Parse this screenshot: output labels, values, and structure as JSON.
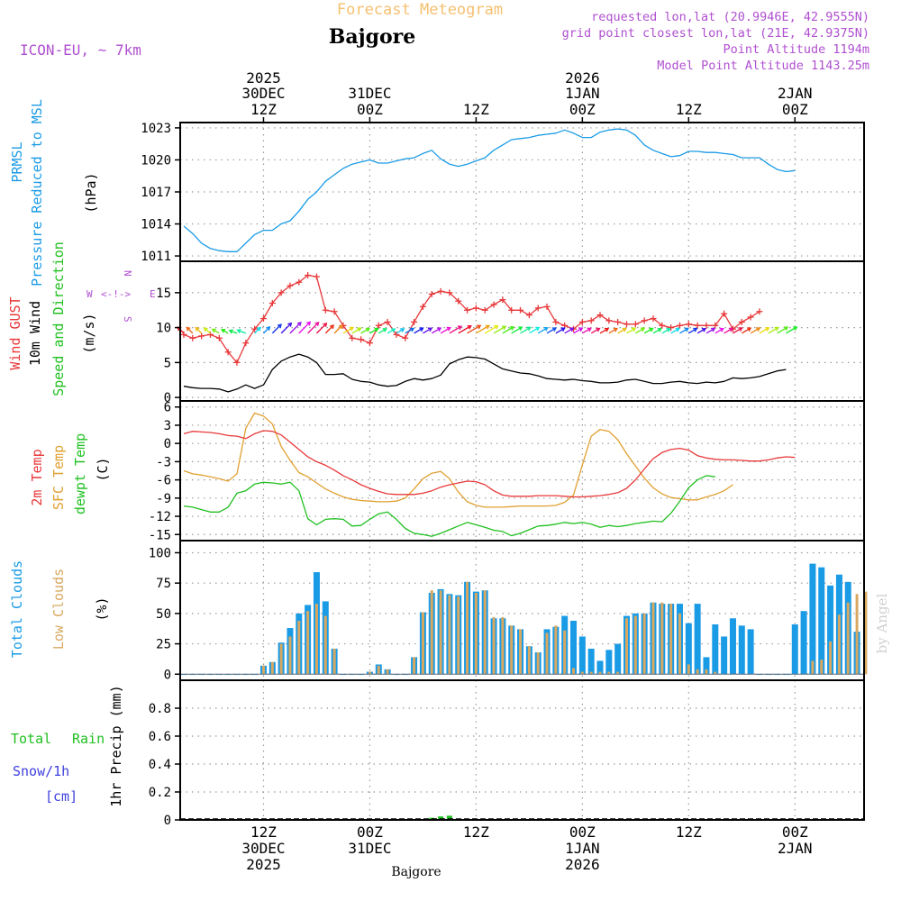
{
  "header": {
    "product": "Forecast Meteogram",
    "location": "Bajgore",
    "model": "ICON-EU, ~ 7km",
    "requested": "requested lon,lat (20.9946E, 42.9555N)",
    "gridpoint": "grid point closest lon,lat (21E, 42.9375N)",
    "altitude": "Point Altitude 1194m",
    "model_altitude": "Model Point Altitude 1143.25m",
    "credit": "by Angel",
    "footer": "Bajgore"
  },
  "colors": {
    "pressure": "#1a9be6",
    "gust": "#e8383a",
    "wind": "#000000",
    "temp": "#e8383a",
    "sfc": "#e0a030",
    "dew": "#20c020",
    "total_clouds": "#1a9be6",
    "low_clouds": "#d8a860",
    "rain": "#20c020",
    "snow": "#4040e0",
    "header_orange": "#f5c070",
    "header_purple": "#b050d0"
  },
  "time_axis": {
    "top_labels": [
      {
        "slot": 9,
        "l1": "2025",
        "l2": "30DEC",
        "l3": "12Z"
      },
      {
        "slot": 21,
        "l1": "",
        "l2": "31DEC",
        "l3": "00Z"
      },
      {
        "slot": 33,
        "l1": "",
        "l2": "",
        "l3": "12Z"
      },
      {
        "slot": 45,
        "l1": "2026",
        "l2": "1JAN",
        "l3": "00Z"
      },
      {
        "slot": 57,
        "l1": "",
        "l2": "",
        "l3": "12Z"
      },
      {
        "slot": 69,
        "l1": "",
        "l2": "2JAN",
        "l3": "00Z"
      }
    ],
    "bottom_labels": [
      {
        "slot": 9,
        "l1": "12Z",
        "l2": "30DEC",
        "l3": "2025"
      },
      {
        "slot": 21,
        "l1": "00Z",
        "l2": "31DEC",
        "l3": ""
      },
      {
        "slot": 33,
        "l1": "12Z",
        "l2": "",
        "l3": ""
      },
      {
        "slot": 45,
        "l1": "00Z",
        "l2": "1JAN",
        "l3": "2026"
      },
      {
        "slot": 57,
        "l1": "12Z",
        "l2": "",
        "l3": ""
      },
      {
        "slot": 69,
        "l1": "00Z",
        "l2": "2JAN",
        "l3": ""
      }
    ]
  },
  "chart_data": [
    {
      "type": "line",
      "id": "pressure",
      "title": "PRMSL Pressure Reduced to MSL",
      "ylabel": "(hPa)",
      "label1": "PRMSL",
      "label2": "Pressure Reduced to MSL",
      "ylim": [
        1010.5,
        1023.5
      ],
      "yticks": [
        1011,
        1014,
        1017,
        1020,
        1023
      ],
      "series": [
        {
          "name": "PRMSL",
          "values": [
            1013.8,
            1013.1,
            1012.2,
            1011.7,
            1011.5,
            1011.4,
            1011.4,
            1012.2,
            1013.0,
            1013.4,
            1013.4,
            1014.0,
            1014.3,
            1015.2,
            1016.3,
            1017.0,
            1018.0,
            1018.6,
            1019.2,
            1019.6,
            1019.8,
            1020.0,
            1019.7,
            1019.7,
            1019.9,
            1020.1,
            1020.2,
            1020.6,
            1020.9,
            1020.1,
            1019.6,
            1019.4,
            1019.6,
            1019.9,
            1020.2,
            1020.9,
            1021.4,
            1021.9,
            1022.0,
            1022.1,
            1022.3,
            1022.4,
            1022.5,
            1022.8,
            1022.5,
            1022.1,
            1022.1,
            1022.6,
            1022.8,
            1022.9,
            1022.8,
            1022.3,
            1021.4,
            1020.9,
            1020.6,
            1020.3,
            1020.4,
            1020.8,
            1020.8,
            1020.7,
            1020.7,
            1020.6,
            1020.5,
            1020.2,
            1020.2,
            1020.2,
            1019.6,
            1019.1,
            1018.9,
            1019.0
          ]
        }
      ]
    },
    {
      "type": "line",
      "id": "wind",
      "title": "Wind GUST / 10m Wind Speed and Direction",
      "ylabel": "(m/s)",
      "label_gust": "Wind GUST",
      "label_wind": "10m Wind",
      "label_dir": "Speed and Direction",
      "compass": {
        "w": "W",
        "e": "E",
        "arrow": "<-!->",
        "n": "N",
        "s": "S"
      },
      "ylim": [
        -0.5,
        19.5
      ],
      "yticks": [
        0,
        5,
        10,
        15
      ],
      "series": [
        {
          "name": "Wind GUST",
          "values": [
            9.0,
            8.5,
            8.8,
            9.0,
            8.5,
            6.5,
            5.0,
            7.8,
            9.8,
            11.3,
            13.5,
            15.0,
            16.0,
            16.5,
            17.5,
            17.3,
            12.5,
            12.3,
            10.3,
            8.5,
            8.3,
            7.8,
            10.3,
            10.8,
            9.0,
            8.5,
            10.8,
            13.0,
            14.8,
            15.2,
            15.0,
            13.8,
            12.5,
            12.8,
            12.5,
            13.3,
            14.0,
            12.5,
            12.5,
            11.8,
            12.8,
            13.0,
            10.8,
            10.3,
            9.8,
            10.8,
            11.0,
            11.8,
            11.0,
            10.8,
            10.5,
            10.5,
            11.0,
            11.3,
            10.3,
            10.0,
            10.3,
            10.5,
            10.3,
            10.3,
            10.3,
            12.0,
            9.8,
            10.8,
            11.5,
            12.3
          ]
        },
        {
          "name": "10m Wind",
          "values": [
            1.6,
            1.4,
            1.3,
            1.3,
            1.2,
            0.8,
            1.2,
            1.8,
            1.3,
            1.8,
            4.0,
            5.2,
            5.8,
            6.2,
            5.8,
            5.0,
            3.3,
            3.3,
            3.4,
            2.6,
            2.3,
            2.2,
            1.8,
            1.6,
            1.7,
            2.3,
            2.7,
            2.5,
            2.7,
            3.2,
            4.8,
            5.4,
            5.8,
            5.7,
            5.5,
            4.8,
            4.1,
            3.8,
            3.5,
            3.4,
            3.1,
            2.7,
            2.6,
            2.5,
            2.6,
            2.4,
            2.3,
            2.1,
            2.1,
            2.2,
            2.5,
            2.6,
            2.3,
            2.0,
            2.0,
            2.2,
            2.3,
            2.1,
            2.0,
            2.2,
            2.1,
            2.3,
            2.8,
            2.7,
            2.8,
            3.0,
            3.4,
            3.8,
            4.0
          ]
        }
      ],
      "wind_direction_deg": [
        315,
        315,
        315,
        310,
        300,
        300,
        290,
        290,
        45,
        45,
        45,
        45,
        45,
        45,
        45,
        45,
        45,
        45,
        60,
        60,
        60,
        60,
        60,
        60,
        60,
        60,
        60,
        60,
        60,
        60,
        60,
        60,
        60,
        60,
        60,
        60,
        60,
        60,
        60,
        60,
        60,
        60,
        60,
        60,
        60,
        60,
        60,
        60,
        60,
        60,
        60,
        60,
        60,
        60,
        60,
        60,
        60,
        60,
        60,
        60,
        60,
        60,
        60,
        60,
        60,
        60,
        60,
        60,
        60,
        60
      ]
    },
    {
      "type": "line",
      "id": "temperature",
      "title": "2m Temp / SFC Temp / dewpt Temp",
      "ylabel": "(C)",
      "label_t2m": "2m Temp",
      "label_sfc": "SFC Temp",
      "label_dew": "dewpt Temp",
      "ylim": [
        -16,
        7
      ],
      "yticks": [
        -15,
        -12,
        -9,
        -6,
        -3,
        0,
        3,
        6
      ],
      "series": [
        {
          "name": "2m Temp",
          "values": [
            1.6,
            2.0,
            1.9,
            1.8,
            1.6,
            1.3,
            1.2,
            0.8,
            1.6,
            2.1,
            2.0,
            1.4,
            0.2,
            -1.0,
            -2.2,
            -3.0,
            -3.6,
            -4.4,
            -5.3,
            -6.0,
            -6.8,
            -7.4,
            -7.9,
            -8.3,
            -8.4,
            -8.4,
            -8.4,
            -8.2,
            -7.8,
            -7.2,
            -6.8,
            -6.5,
            -6.2,
            -6.3,
            -6.8,
            -7.8,
            -8.5,
            -8.7,
            -8.7,
            -8.7,
            -8.6,
            -8.6,
            -8.6,
            -8.7,
            -8.8,
            -8.8,
            -8.7,
            -8.6,
            -8.4,
            -8.1,
            -7.4,
            -6.0,
            -4.2,
            -2.5,
            -1.5,
            -1.0,
            -0.8,
            -1.1,
            -2.0,
            -2.4,
            -2.6,
            -2.7,
            -2.7,
            -2.8,
            -2.9,
            -2.9,
            -2.7,
            -2.4,
            -2.2,
            -2.3
          ]
        },
        {
          "name": "SFC Temp",
          "values": [
            -4.5,
            -5.0,
            -5.2,
            -5.5,
            -5.8,
            -6.2,
            -5.0,
            2.5,
            5.0,
            4.5,
            3.2,
            -0.5,
            -2.8,
            -4.8,
            -5.5,
            -6.5,
            -7.5,
            -8.2,
            -8.8,
            -9.2,
            -9.4,
            -9.5,
            -9.6,
            -9.6,
            -9.5,
            -9.0,
            -7.5,
            -5.8,
            -4.9,
            -4.6,
            -5.8,
            -8.0,
            -9.6,
            -10.2,
            -10.5,
            -10.5,
            -10.5,
            -10.4,
            -10.3,
            -10.3,
            -10.3,
            -10.3,
            -10.2,
            -9.7,
            -8.5,
            -3.5,
            1.2,
            2.3,
            2.0,
            0.6,
            -1.7,
            -3.7,
            -5.7,
            -7.3,
            -8.3,
            -8.9,
            -9.1,
            -9.3,
            -9.3,
            -8.8,
            -8.4,
            -7.8,
            -6.8
          ]
        },
        {
          "name": "dewpt Temp",
          "values": [
            -10.3,
            -10.5,
            -10.9,
            -11.3,
            -11.3,
            -10.5,
            -8.2,
            -7.8,
            -6.7,
            -6.4,
            -6.5,
            -6.7,
            -6.4,
            -7.8,
            -12.4,
            -13.4,
            -12.5,
            -12.4,
            -12.5,
            -13.6,
            -13.5,
            -12.5,
            -11.6,
            -11.3,
            -12.5,
            -14.0,
            -14.8,
            -15.0,
            -15.3,
            -14.8,
            -14.2,
            -13.6,
            -13.0,
            -13.4,
            -13.8,
            -14.3,
            -14.5,
            -15.2,
            -14.8,
            -14.2,
            -13.6,
            -13.5,
            -13.3,
            -13.0,
            -13.2,
            -13.0,
            -13.3,
            -13.8,
            -13.5,
            -13.7,
            -13.5,
            -13.2,
            -13.0,
            -12.8,
            -12.9,
            -11.5,
            -9.5,
            -7.3,
            -6.0,
            -5.3,
            -5.5
          ]
        }
      ]
    },
    {
      "type": "bar",
      "id": "clouds",
      "title": "Total Clouds / Low Clouds",
      "ylabel": "(%)",
      "label_total": "Total Clouds",
      "label_low": "Low Clouds",
      "ylim": [
        -5,
        110
      ],
      "yticks": [
        0,
        25,
        50,
        75,
        100
      ],
      "series": [
        {
          "name": "Total Clouds",
          "values": [
            0,
            0,
            0,
            0,
            0,
            0,
            0,
            0,
            0,
            7,
            10,
            26,
            38,
            50,
            57,
            84,
            60,
            21,
            0,
            0,
            0,
            2,
            8,
            4,
            0,
            0,
            14,
            51,
            67,
            70,
            66,
            65,
            76,
            68,
            69,
            46,
            46,
            40,
            37,
            23,
            18,
            37,
            39,
            48,
            44,
            31,
            21,
            11,
            20,
            25,
            48,
            50,
            50,
            59,
            58,
            58,
            58,
            42,
            58,
            14,
            41,
            31,
            46,
            40,
            37,
            0,
            0,
            0,
            0,
            41,
            52,
            91,
            88,
            73,
            82,
            76,
            35
          ]
        },
        {
          "name": "Low Clouds",
          "values": [
            0,
            0,
            0,
            0,
            0,
            0,
            0,
            0,
            0,
            7,
            10,
            25,
            31,
            44,
            52,
            58,
            48,
            21,
            0,
            0,
            0,
            2,
            7,
            4,
            0,
            0,
            14,
            51,
            69,
            69,
            65,
            64,
            76,
            67,
            69,
            47,
            47,
            40,
            37,
            23,
            18,
            34,
            40,
            36,
            5,
            2,
            2,
            2,
            2,
            2,
            46,
            48,
            50,
            59,
            59,
            58,
            50,
            8,
            4,
            4,
            2,
            0,
            0,
            0,
            0,
            0,
            0,
            0,
            0,
            0,
            0,
            11,
            12,
            27,
            49,
            59,
            66,
            68,
            0
          ]
        }
      ]
    },
    {
      "type": "bar",
      "id": "precip",
      "title": "1hr Precip (mm)",
      "ylabel": "1hr Precip (mm)",
      "label_total": "Total",
      "label_rain": "Rain",
      "label_snow": "Snow/1h",
      "label_cm": "[cm]",
      "ylim": [
        0,
        1.0
      ],
      "yticks": [
        0,
        0.2,
        0.4,
        0.6,
        0.8
      ],
      "series": [
        {
          "name": "Total",
          "values": [
            0,
            0,
            0,
            0,
            0,
            0,
            0,
            0,
            0,
            0,
            0,
            0,
            0,
            0,
            0,
            0,
            0,
            0,
            0,
            0,
            0,
            0,
            0,
            0,
            0,
            0,
            0,
            0,
            0.015,
            0.025,
            0.03,
            0.01,
            0,
            0,
            0,
            0,
            0,
            0,
            0,
            0,
            0,
            0,
            0,
            0,
            0,
            0,
            0,
            0,
            0,
            0,
            0,
            0,
            0,
            0,
            0,
            0,
            0,
            0,
            0,
            0,
            0,
            0,
            0,
            0,
            0,
            0,
            0,
            0,
            0,
            0,
            0,
            0,
            0,
            0,
            0,
            0,
            0
          ]
        },
        {
          "name": "Snow/1h",
          "values": [
            0,
            0,
            0,
            0,
            0,
            0,
            0,
            0,
            0,
            0,
            0,
            0,
            0,
            0,
            0,
            0,
            0,
            0,
            0,
            0,
            0,
            0,
            0,
            0,
            0,
            0,
            0,
            0,
            0.005,
            0.01,
            0.01,
            0.005,
            0,
            0,
            0,
            0,
            0,
            0,
            0,
            0,
            0,
            0,
            0,
            0,
            0,
            0,
            0,
            0,
            0,
            0,
            0,
            0,
            0,
            0,
            0,
            0,
            0,
            0,
            0,
            0,
            0,
            0,
            0,
            0,
            0,
            0,
            0,
            0,
            0,
            0,
            0,
            0,
            0,
            0,
            0,
            0,
            0
          ]
        }
      ]
    }
  ]
}
